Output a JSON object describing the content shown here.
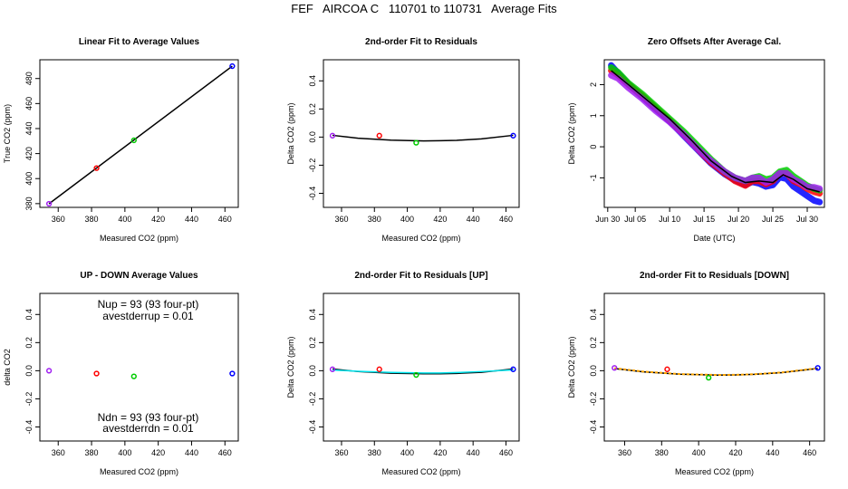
{
  "page": {
    "title": "FEF   AIRCOA C   110701 to 110731   Average Fits"
  },
  "chart_data": [
    {
      "id": "linear",
      "type": "scatter",
      "title": "Linear Fit to Average Values",
      "xlabel": "Measured CO2 (ppm)",
      "ylabel": "True CO2 (ppm)",
      "xlim": [
        349,
        468
      ],
      "ylim": [
        377,
        495
      ],
      "xticks": [
        360,
        380,
        400,
        420,
        440,
        460
      ],
      "yticks": [
        380,
        400,
        420,
        440,
        460,
        480
      ],
      "tick_labels_y": [
        "380",
        "400",
        "420",
        "440",
        "460",
        "480"
      ],
      "tick_labels_x": [
        "360",
        "380",
        "400",
        "420",
        "440",
        "460"
      ],
      "points": [
        {
          "x": 354.5,
          "y": 379.9,
          "color": "#a020f0"
        },
        {
          "x": 383.0,
          "y": 408.4,
          "color": "#ff0000"
        },
        {
          "x": 405.4,
          "y": 430.6,
          "color": "#00cc00"
        },
        {
          "x": 464.4,
          "y": 489.9,
          "color": "#0000ff"
        }
      ],
      "line": {
        "x": [
          354.5,
          464.4
        ],
        "y": [
          379.9,
          489.9
        ],
        "color": "#000000"
      }
    },
    {
      "id": "resid",
      "type": "scatter",
      "title": "2nd-order Fit to Residuals",
      "xlabel": "Measured CO2 (ppm)",
      "ylabel": "Delta CO2 (ppm)",
      "xlim": [
        349,
        468
      ],
      "ylim": [
        -0.5,
        0.55
      ],
      "xticks": [
        360,
        380,
        400,
        420,
        440,
        460
      ],
      "yticks": [
        -0.4,
        -0.2,
        0.0,
        0.2,
        0.4
      ],
      "tick_labels_y": [
        "-0.4",
        "-0.2",
        "0.0",
        "0.2",
        "0.4"
      ],
      "tick_labels_x": [
        "360",
        "380",
        "400",
        "420",
        "440",
        "460"
      ],
      "points": [
        {
          "x": 354.5,
          "y": 0.01,
          "color": "#a020f0"
        },
        {
          "x": 383.0,
          "y": 0.01,
          "color": "#ff0000"
        },
        {
          "x": 405.4,
          "y": -0.04,
          "color": "#00cc00"
        },
        {
          "x": 464.4,
          "y": 0.01,
          "color": "#0000ff"
        }
      ],
      "curves": [
        {
          "x": [
            354.5,
            370,
            390,
            410,
            420,
            430,
            445,
            464.4
          ],
          "y": [
            0.0125,
            -0.008,
            -0.022,
            -0.027,
            -0.026,
            -0.023,
            -0.013,
            0.0125
          ],
          "color": "#000000"
        }
      ]
    },
    {
      "id": "offsets",
      "type": "line",
      "title": "Zero Offsets After Average Cal.",
      "xlabel": "Date (UTC)",
      "ylabel": "Delta CO2 (ppm)",
      "xlim": [
        -0.5,
        31.5
      ],
      "ylim": [
        -1.95,
        2.8
      ],
      "xticks": [
        0,
        4,
        9,
        14,
        19,
        24,
        29
      ],
      "tick_labels_x": [
        "Jun 30",
        "Jul 05",
        "Jul 10",
        "Jul 15",
        "Jul 20",
        "Jul 25",
        "Jul 30"
      ],
      "yticks": [
        -1,
        0,
        1,
        2
      ],
      "tick_labels_y": [
        "-1",
        "0",
        "1",
        "2"
      ],
      "series": [
        {
          "name": "blue",
          "color": "#0000ff",
          "dy": -0.08,
          "x": [
            0.5,
            1.5,
            3,
            5,
            7,
            9,
            11,
            13,
            15,
            17,
            18.5,
            20,
            21,
            22,
            23,
            24,
            25,
            26,
            27,
            28,
            29,
            30,
            30.8
          ],
          "y": [
            2.7,
            2.45,
            2.1,
            1.7,
            1.3,
            0.9,
            0.45,
            0.0,
            -0.45,
            -0.8,
            -1.0,
            -1.15,
            -1.05,
            -1.1,
            -1.2,
            -1.15,
            -0.9,
            -0.95,
            -1.2,
            -1.35,
            -1.5,
            -1.65,
            -1.7
          ]
        },
        {
          "name": "red",
          "color": "#ff0000",
          "dy": 0.0,
          "x": [
            0.5,
            1.5,
            3,
            5,
            7,
            9,
            11,
            13,
            15,
            17,
            18.5,
            20,
            21,
            22,
            23,
            24,
            25,
            26,
            27,
            28,
            29,
            30,
            30.8
          ],
          "y": [
            2.45,
            2.3,
            2.0,
            1.65,
            1.25,
            0.85,
            0.4,
            -0.05,
            -0.5,
            -0.85,
            -1.1,
            -1.25,
            -1.1,
            -1.1,
            -1.2,
            -1.1,
            -0.85,
            -0.85,
            -1.1,
            -1.2,
            -1.35,
            -1.45,
            -1.5
          ]
        },
        {
          "name": "green",
          "color": "#00cc00",
          "dy": 0.0,
          "x": [
            0.5,
            1.5,
            3,
            5,
            7,
            9,
            11,
            13,
            15,
            17,
            18.5,
            20,
            21,
            22,
            23,
            24,
            25,
            26,
            27,
            28,
            29,
            30,
            30.8
          ],
          "y": [
            2.55,
            2.4,
            2.05,
            1.7,
            1.3,
            0.9,
            0.5,
            0.05,
            -0.4,
            -0.8,
            -1.0,
            -1.1,
            -1.0,
            -0.95,
            -1.05,
            -1.0,
            -0.8,
            -0.75,
            -0.95,
            -1.1,
            -1.25,
            -1.35,
            -1.4
          ]
        },
        {
          "name": "purple",
          "color": "#a020f0",
          "dy": 0.0,
          "x": [
            0.5,
            1.5,
            3,
            5,
            7,
            9,
            11,
            13,
            15,
            17,
            18.5,
            20,
            21,
            22,
            23,
            24,
            25,
            26,
            27,
            28,
            29,
            30,
            30.8
          ],
          "y": [
            2.3,
            2.2,
            1.9,
            1.55,
            1.15,
            0.8,
            0.4,
            -0.05,
            -0.45,
            -0.8,
            -1.0,
            -1.1,
            -1.0,
            -1.0,
            -1.15,
            -1.05,
            -0.85,
            -0.85,
            -1.05,
            -1.15,
            -1.3,
            -1.3,
            -1.35
          ]
        }
      ],
      "mean_line": {
        "color": "#000000",
        "x": [
          0.5,
          3,
          6,
          9,
          12,
          15,
          18,
          20,
          22,
          24,
          25.5,
          27,
          29,
          30.8
        ],
        "y": [
          2.45,
          2.0,
          1.45,
          0.9,
          0.25,
          -0.45,
          -0.95,
          -1.15,
          -1.1,
          -1.15,
          -0.9,
          -1.05,
          -1.35,
          -1.45
        ]
      }
    },
    {
      "id": "updown",
      "type": "scatter",
      "title": "UP - DOWN Average Values",
      "xlabel": "Measured CO2 (ppm)",
      "ylabel": "delta CO2",
      "xlim": [
        349,
        468
      ],
      "ylim": [
        -0.5,
        0.55
      ],
      "xticks": [
        360,
        380,
        400,
        420,
        440,
        460
      ],
      "yticks": [
        -0.4,
        -0.2,
        0.0,
        0.2,
        0.4
      ],
      "tick_labels_y": [
        "-0.4",
        "-0.2",
        "0.0",
        "0.2",
        "0.4"
      ],
      "tick_labels_x": [
        "360",
        "380",
        "400",
        "420",
        "440",
        "460"
      ],
      "points": [
        {
          "x": 354.5,
          "y": 0.0,
          "color": "#a020f0"
        },
        {
          "x": 383.0,
          "y": -0.02,
          "color": "#ff0000"
        },
        {
          "x": 405.4,
          "y": -0.04,
          "color": "#00cc00"
        },
        {
          "x": 464.4,
          "y": -0.02,
          "color": "#0000ff"
        }
      ],
      "annotations": {
        "nup": "Nup = 93 (93 four-pt)",
        "avestderrup": "avestderrup =  0.01",
        "ndn": "Ndn = 93 (93 four-pt)",
        "avestderrdn": "avestderrdn =  0.01"
      }
    },
    {
      "id": "resid_up",
      "type": "scatter",
      "title": "2nd-order Fit to Residuals [UP]",
      "xlabel": "Measured CO2 (ppm)",
      "ylabel": "Delta CO2 (ppm)",
      "xlim": [
        349,
        468
      ],
      "ylim": [
        -0.5,
        0.55
      ],
      "xticks": [
        360,
        380,
        400,
        420,
        440,
        460
      ],
      "yticks": [
        -0.4,
        -0.2,
        0.0,
        0.2,
        0.4
      ],
      "tick_labels_y": [
        "-0.4",
        "-0.2",
        "0.0",
        "0.2",
        "0.4"
      ],
      "tick_labels_x": [
        "360",
        "380",
        "400",
        "420",
        "440",
        "460"
      ],
      "points": [
        {
          "x": 354.5,
          "y": 0.01,
          "color": "#a020f0"
        },
        {
          "x": 383.0,
          "y": 0.01,
          "color": "#ff0000"
        },
        {
          "x": 405.4,
          "y": -0.03,
          "color": "#00cc00"
        },
        {
          "x": 464.4,
          "y": 0.01,
          "color": "#0000ff"
        }
      ],
      "curves": [
        {
          "x": [
            354.5,
            370,
            390,
            410,
            420,
            430,
            445,
            464.4
          ],
          "y": [
            0.012,
            -0.006,
            -0.018,
            -0.022,
            -0.022,
            -0.019,
            -0.011,
            0.012
          ],
          "color": "#000000"
        },
        {
          "x": [
            354.5,
            370,
            390,
            410,
            420,
            430,
            445,
            464.4
          ],
          "y": [
            0.005,
            -0.004,
            -0.012,
            -0.016,
            -0.016,
            -0.013,
            -0.006,
            0.006
          ],
          "color": "#00e5ee"
        }
      ]
    },
    {
      "id": "resid_down",
      "type": "scatter",
      "title": "2nd-order Fit to Residuals [DOWN]",
      "xlabel": "Measured CO2 (ppm)",
      "ylabel": "Delta CO2 (ppm)",
      "xlim": [
        349,
        468
      ],
      "ylim": [
        -0.5,
        0.55
      ],
      "xticks": [
        360,
        380,
        400,
        420,
        440,
        460
      ],
      "yticks": [
        -0.4,
        -0.2,
        0.0,
        0.2,
        0.4
      ],
      "tick_labels_y": [
        "-0.4",
        "-0.2",
        "0.0",
        "0.2",
        "0.4"
      ],
      "tick_labels_x": [
        "360",
        "380",
        "400",
        "420",
        "440",
        "460"
      ],
      "points": [
        {
          "x": 354.5,
          "y": 0.02,
          "color": "#a020f0"
        },
        {
          "x": 383.0,
          "y": 0.01,
          "color": "#ff0000"
        },
        {
          "x": 405.4,
          "y": -0.05,
          "color": "#00cc00"
        },
        {
          "x": 464.4,
          "y": 0.02,
          "color": "#0000ff"
        }
      ],
      "curves": [
        {
          "x": [
            354.5,
            370,
            390,
            410,
            420,
            430,
            445,
            464.4
          ],
          "y": [
            0.015,
            -0.008,
            -0.025,
            -0.031,
            -0.03,
            -0.026,
            -0.014,
            0.016
          ],
          "color": "#000000"
        },
        {
          "x": [
            354.5,
            370,
            390,
            410,
            420,
            430,
            445,
            464.4
          ],
          "y": [
            0.018,
            -0.006,
            -0.024,
            -0.03,
            -0.029,
            -0.025,
            -0.012,
            0.018
          ],
          "color": "#ffa500",
          "dashed": true
        }
      ]
    }
  ]
}
